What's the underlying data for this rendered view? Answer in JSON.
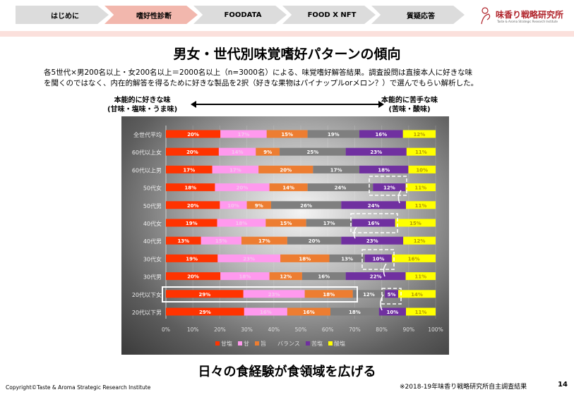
{
  "nav": {
    "tabs": [
      "はじめに",
      "嗜好性診断",
      "FOODATA",
      "FOOD X NFT",
      "質疑応答"
    ],
    "active": 1
  },
  "logo": {
    "name": "味香り戦略研究所",
    "subtitle": "Taste & Aroma Strategic Research Institute"
  },
  "title": "男女・世代別味覚嗜好パターンの傾向",
  "description": [
    "各5世代×男200名以上・女200名以上＝2000名以上（n=3000名）による、味覚嗜好解答結果。調査設問は直接本人に好きな味",
    "を聞くのではなく、内在的解答を得るために好きな製品を2択（好きな果物はパイナップルorメロン？）で選んでもらい解析した。"
  ],
  "axis_labels": {
    "left": [
      "本能的に好きな味",
      "(甘味・塩味・うま味)"
    ],
    "right": [
      "本能的に苦手な味",
      "(苦味・酸味)"
    ]
  },
  "chart_data": {
    "type": "bar",
    "orientation": "horizontal",
    "stacked": "percent",
    "categories": [
      "全世代平均",
      "60代以上女",
      "60代以上男",
      "50代女",
      "50代男",
      "40代女",
      "40代男",
      "30代女",
      "30代男",
      "20代以下女",
      "20代以下男"
    ],
    "series": [
      {
        "name": "甘塩",
        "color": "#ff3300",
        "values": [
          20,
          20,
          17,
          18,
          20,
          19,
          13,
          19,
          20,
          29,
          29
        ]
      },
      {
        "name": "甘",
        "color": "#ff99ee",
        "values": [
          17,
          14,
          17,
          20,
          10,
          18,
          15,
          23,
          18,
          23,
          16
        ]
      },
      {
        "name": "旨",
        "color": "#ed7d31",
        "values": [
          15,
          9,
          20,
          14,
          9,
          15,
          17,
          18,
          12,
          18,
          16
        ]
      },
      {
        "name": "バランス",
        "color": "#7f7f7f",
        "values": [
          19,
          25,
          17,
          24,
          26,
          17,
          20,
          13,
          16,
          12,
          18
        ]
      },
      {
        "name": "苦塩",
        "color": "#7030a0",
        "values": [
          16,
          23,
          18,
          12,
          24,
          16,
          23,
          10,
          22,
          5,
          10
        ]
      },
      {
        "name": "酸塩",
        "color": "#ffff00",
        "values": [
          12,
          11,
          10,
          11,
          11,
          15,
          12,
          16,
          11,
          14,
          11
        ]
      }
    ],
    "xticks": [
      "0%",
      "10%",
      "20%",
      "30%",
      "40%",
      "50%",
      "60%",
      "70%",
      "80%",
      "90%",
      "100%"
    ],
    "xlim": [
      0,
      100
    ],
    "legend": "bottom",
    "grid": true
  },
  "footer": {
    "message": "日々の食経験が食領域を広げる",
    "copyright": "Copyright©Taste & Aroma Strategic Research Institute",
    "source": "※2018-19年味香り戦略研究所自主調査結果",
    "page": "14"
  }
}
